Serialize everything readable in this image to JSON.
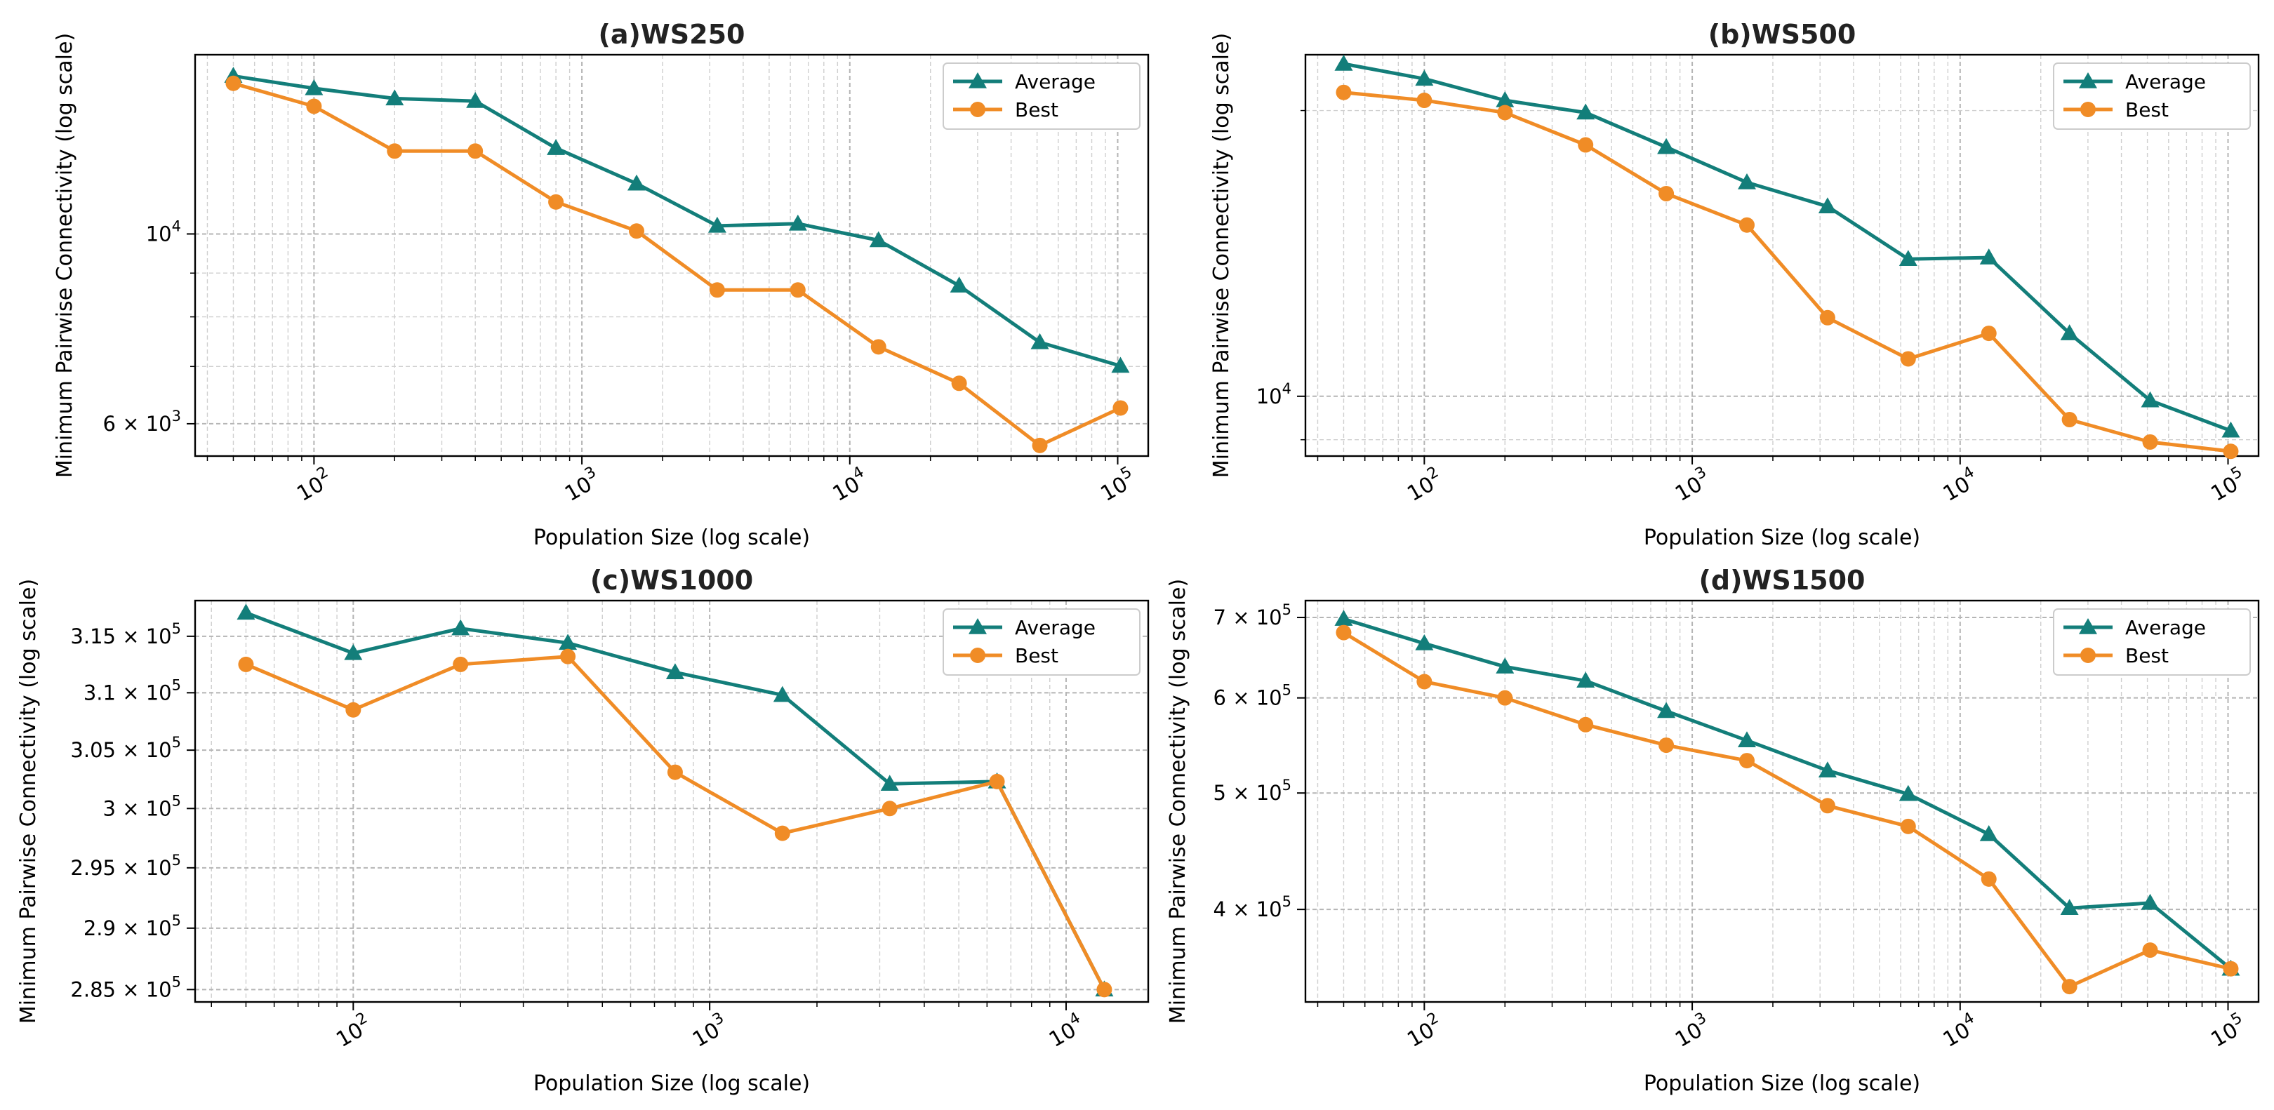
{
  "chart_data": [
    {
      "id": "a",
      "type": "line",
      "title": "(a)WS250",
      "xlabel": "Population Size (log scale)",
      "ylabel": "Minimum Pairwise Connectivity (log scale)",
      "xscale": "log",
      "yscale": "log",
      "xlim": [
        36,
        130000
      ],
      "ylim": [
        5500,
        16200
      ],
      "grid": true,
      "legend_position": "top-right",
      "x_ticks": [
        {
          "value": 100,
          "base": "10",
          "exp": "2"
        },
        {
          "value": 1000,
          "base": "10",
          "exp": "3"
        },
        {
          "value": 10000,
          "base": "10",
          "exp": "4"
        },
        {
          "value": 100000,
          "base": "10",
          "exp": "5"
        }
      ],
      "y_ticks": [
        {
          "value": 10000,
          "label": "10",
          "exp": "4"
        },
        {
          "value": 6000,
          "label": "6 × 10",
          "exp": "3"
        }
      ],
      "x": [
        50,
        100,
        200,
        400,
        800,
        1600,
        3200,
        6400,
        12800,
        25600,
        51200,
        102400
      ],
      "series": [
        {
          "name": "Average",
          "marker": "triangle",
          "color": "#137e7a",
          "values": [
            15300,
            14800,
            14400,
            14300,
            12600,
            11450,
            10220,
            10280,
            9830,
            8700,
            7470,
            7010
          ]
        },
        {
          "name": "Best",
          "marker": "circle",
          "color": "#f08c26",
          "values": [
            15000,
            14100,
            12500,
            12500,
            10900,
            10080,
            8600,
            8600,
            7380,
            6690,
            5660,
            6260
          ]
        }
      ]
    },
    {
      "id": "b",
      "type": "line",
      "title": "(b)WS500",
      "xlabel": "Population Size (log scale)",
      "ylabel": "Minimum Pairwise Connectivity (log scale)",
      "xscale": "log",
      "yscale": "log",
      "xlim": [
        36,
        130000
      ],
      "ylim": [
        8650,
        22900
      ],
      "grid": true,
      "legend_position": "top-right",
      "x_ticks": [
        {
          "value": 100,
          "base": "10",
          "exp": "2"
        },
        {
          "value": 1000,
          "base": "10",
          "exp": "3"
        },
        {
          "value": 10000,
          "base": "10",
          "exp": "4"
        },
        {
          "value": 100000,
          "base": "10",
          "exp": "5"
        }
      ],
      "y_ticks": [
        {
          "value": 10000,
          "label": "10",
          "exp": "4"
        }
      ],
      "x": [
        50,
        100,
        200,
        400,
        800,
        1600,
        3200,
        6400,
        12800,
        25600,
        51200,
        102400
      ],
      "series": [
        {
          "name": "Average",
          "marker": "triangle",
          "color": "#137e7a",
          "values": [
            22400,
            21600,
            20500,
            19900,
            18300,
            16800,
            15850,
            13950,
            14000,
            11650,
            9900,
            9200
          ]
        },
        {
          "name": "Best",
          "marker": "circle",
          "color": "#f08c26",
          "values": [
            20900,
            20500,
            19900,
            18400,
            16350,
            15150,
            12100,
            10950,
            11650,
            9450,
            8950,
            8750
          ]
        }
      ]
    },
    {
      "id": "c",
      "type": "line",
      "title": "(c)WS1000",
      "xlabel": "Population Size (log scale)",
      "ylabel": "Minimum Pairwise Connectivity (log scale)",
      "xscale": "log",
      "yscale": "log",
      "xlim": [
        36,
        17000
      ],
      "ylim": [
        284000,
        318200
      ],
      "grid": true,
      "legend_position": "top-right",
      "x_ticks": [
        {
          "value": 100,
          "base": "10",
          "exp": "2"
        },
        {
          "value": 1000,
          "base": "10",
          "exp": "3"
        },
        {
          "value": 10000,
          "base": "10",
          "exp": "4"
        }
      ],
      "y_ticks": [
        {
          "value": 315000,
          "label": "3.15 × 10",
          "exp": "5"
        },
        {
          "value": 310000,
          "label": "3.1 × 10",
          "exp": "5"
        },
        {
          "value": 305000,
          "label": "3.05 × 10",
          "exp": "5"
        },
        {
          "value": 300000,
          "label": "3 × 10",
          "exp": "5"
        },
        {
          "value": 295000,
          "label": "2.95 × 10",
          "exp": "5"
        },
        {
          "value": 290000,
          "label": "2.9 × 10",
          "exp": "5"
        },
        {
          "value": 285000,
          "label": "2.85 × 10",
          "exp": "5"
        }
      ],
      "x": [
        50,
        100,
        200,
        400,
        800,
        1600,
        3200,
        6400,
        12800
      ],
      "series": [
        {
          "name": "Average",
          "marker": "triangle",
          "color": "#137e7a",
          "values": [
            317100,
            313500,
            315700,
            314400,
            311800,
            309800,
            302100,
            302300,
            285000
          ]
        },
        {
          "name": "Best",
          "marker": "circle",
          "color": "#f08c26",
          "values": [
            312500,
            308500,
            312500,
            313200,
            303100,
            297900,
            300000,
            302300,
            285000
          ]
        }
      ]
    },
    {
      "id": "d",
      "type": "line",
      "title": "(d)WS1500",
      "xlabel": "Population Size (log scale)",
      "ylabel": "Minimum Pairwise Connectivity (log scale)",
      "xscale": "log",
      "yscale": "log",
      "xlim": [
        36,
        130000
      ],
      "ylim": [
        335000,
        723000
      ],
      "grid": true,
      "legend_position": "top-right",
      "x_ticks": [
        {
          "value": 100,
          "base": "10",
          "exp": "2"
        },
        {
          "value": 1000,
          "base": "10",
          "exp": "3"
        },
        {
          "value": 10000,
          "base": "10",
          "exp": "4"
        },
        {
          "value": 100000,
          "base": "10",
          "exp": "5"
        }
      ],
      "y_ticks": [
        {
          "value": 700000,
          "label": "7 × 10",
          "exp": "5"
        },
        {
          "value": 600000,
          "label": "6 × 10",
          "exp": "5"
        },
        {
          "value": 500000,
          "label": "5 × 10",
          "exp": "5"
        },
        {
          "value": 400000,
          "label": "4 × 10",
          "exp": "5"
        }
      ],
      "x": [
        50,
        100,
        200,
        400,
        800,
        1600,
        3200,
        6400,
        12800,
        25600,
        51200,
        102400
      ],
      "series": [
        {
          "name": "Average",
          "marker": "triangle",
          "color": "#137e7a",
          "values": [
            698000,
            666000,
            637000,
            620000,
            585000,
            553000,
            522000,
            499000,
            462000,
            401000,
            405000,
            357000
          ]
        },
        {
          "name": "Best",
          "marker": "circle",
          "color": "#f08c26",
          "values": [
            680000,
            619000,
            600000,
            570000,
            548000,
            532000,
            488000,
            469000,
            424000,
            345000,
            370000,
            357000
          ]
        }
      ]
    }
  ]
}
